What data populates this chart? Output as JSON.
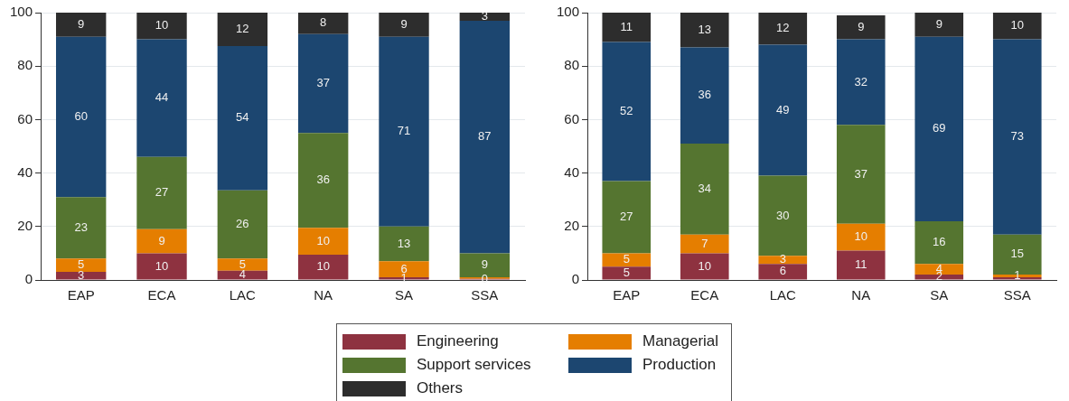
{
  "chart_data": [
    {
      "type": "bar",
      "stacked": true,
      "categories": [
        "EAP",
        "ECA",
        "LAC",
        "NA",
        "SA",
        "SSA"
      ],
      "ylim": [
        0,
        100
      ],
      "yticks": [
        0,
        20,
        40,
        60,
        80,
        100
      ],
      "grid": "y",
      "legend": "bottom",
      "series": [
        {
          "name": "Engineering",
          "color": "#8e3240",
          "values": [
            3,
            10,
            3.5,
            9.5,
            1,
            0.4
          ],
          "value_labels": [
            "3",
            "10",
            "4",
            "10",
            "1",
            "0"
          ]
        },
        {
          "name": "Managerial",
          "color": "#e57e00",
          "values": [
            5,
            9,
            4.5,
            10,
            6,
            0.6
          ],
          "value_labels": [
            "5",
            "9",
            "5",
            "10",
            "6",
            null
          ]
        },
        {
          "name": "Support services",
          "color": "#557530",
          "values": [
            23,
            27,
            25.5,
            35.5,
            13,
            9
          ],
          "value_labels": [
            "23",
            "27",
            "26",
            "36",
            "13",
            "9"
          ]
        },
        {
          "name": "Production",
          "color": "#1c4670",
          "values": [
            60,
            44,
            54,
            37,
            71,
            87
          ],
          "value_labels": [
            "60",
            "44",
            "54",
            "37",
            "71",
            "87"
          ]
        },
        {
          "name": "Others",
          "color": "#2d2d2d",
          "values": [
            9,
            10,
            12.5,
            8,
            9,
            3
          ],
          "value_labels": [
            "9",
            "10",
            "12",
            "8",
            "9",
            "3"
          ]
        }
      ]
    },
    {
      "type": "bar",
      "stacked": true,
      "categories": [
        "EAP",
        "ECA",
        "LAC",
        "NA",
        "SA",
        "SSA"
      ],
      "ylim": [
        0,
        100
      ],
      "yticks": [
        0,
        20,
        40,
        60,
        80,
        100
      ],
      "grid": "y",
      "legend": "bottom",
      "series": [
        {
          "name": "Engineering",
          "color": "#8e3240",
          "values": [
            5,
            10,
            6,
            11,
            2,
            1
          ],
          "value_labels": [
            "5",
            "10",
            "6",
            "11",
            "2",
            null
          ]
        },
        {
          "name": "Managerial",
          "color": "#e57e00",
          "values": [
            5,
            7,
            3,
            10,
            4,
            1
          ],
          "value_labels": [
            "5",
            "7",
            "3",
            "10",
            "4",
            "1"
          ]
        },
        {
          "name": "Support services",
          "color": "#557530",
          "values": [
            27,
            34,
            30,
            37,
            16,
            15
          ],
          "value_labels": [
            "27",
            "34",
            "30",
            "37",
            "16",
            "15"
          ]
        },
        {
          "name": "Production",
          "color": "#1c4670",
          "values": [
            52,
            36,
            49,
            32,
            69,
            73
          ],
          "value_labels": [
            "52",
            "36",
            "49",
            "32",
            "69",
            "73"
          ]
        },
        {
          "name": "Others",
          "color": "#2d2d2d",
          "values": [
            11,
            13,
            12,
            9,
            9,
            10
          ],
          "value_labels": [
            "11",
            "13",
            "12",
            "9",
            "9",
            "10"
          ]
        }
      ]
    }
  ]
}
